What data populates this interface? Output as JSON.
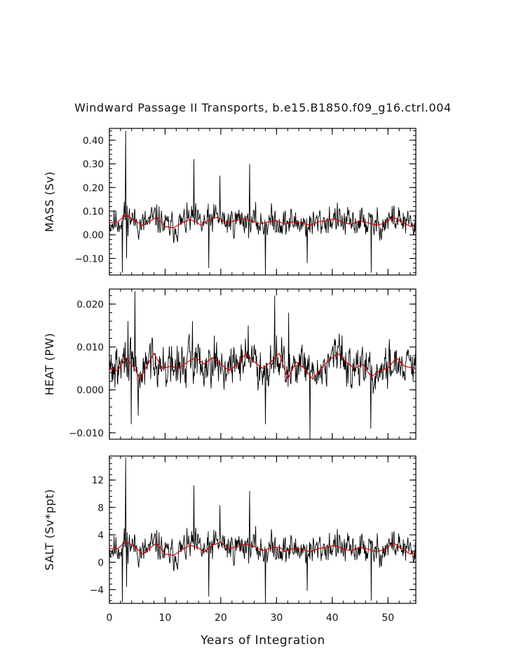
{
  "title": "Windward Passage II Transports, b.e15.B1850.f09_g16.ctrl.004",
  "xlabel": "Years of Integration",
  "colors": {
    "raw": "#000000",
    "smoothed": "#d40000",
    "axis": "#000000"
  },
  "chart_data": [
    {
      "type": "line",
      "id": "mass",
      "ylabel": "MASS (Sv)",
      "xlim": [
        0,
        55
      ],
      "ylim": [
        -0.17,
        0.45
      ],
      "x_ticks": [
        0,
        10,
        20,
        30,
        40,
        50
      ],
      "y_ticks": [
        -0.1,
        0.0,
        0.1,
        0.2,
        0.3,
        0.4
      ],
      "y_tick_labels": [
        "−0.10",
        "0.00",
        "0.10",
        "0.20",
        "0.30",
        "0.40"
      ],
      "grid": false,
      "series": [
        {
          "role": "monthly",
          "mean": 0.045,
          "amplitude": 0.045,
          "seed": 11,
          "spikes": [
            [
              2.9,
              0.44
            ],
            [
              15.2,
              0.32
            ],
            [
              25.2,
              0.3
            ],
            [
              19.8,
              0.25
            ],
            [
              3.1,
              -0.1
            ],
            [
              2.3,
              -0.16
            ],
            [
              17.8,
              -0.14
            ],
            [
              28.0,
              -0.17
            ],
            [
              47.0,
              -0.16
            ],
            [
              35.5,
              -0.12
            ]
          ]
        },
        {
          "role": "running-mean",
          "points": [
            [
              0,
              0.05
            ],
            [
              1.5,
              0.055
            ],
            [
              3,
              0.085
            ],
            [
              4.5,
              0.06
            ],
            [
              6,
              0.04
            ],
            [
              7.5,
              0.06
            ],
            [
              8.5,
              0.075
            ],
            [
              10,
              0.035
            ],
            [
              11.5,
              0.03
            ],
            [
              13,
              0.05
            ],
            [
              14.5,
              0.065
            ],
            [
              15.5,
              0.055
            ],
            [
              16.5,
              0.04
            ],
            [
              18,
              0.065
            ],
            [
              19.5,
              0.075
            ],
            [
              21,
              0.05
            ],
            [
              22.5,
              0.06
            ],
            [
              24,
              0.07
            ],
            [
              25.5,
              0.06
            ],
            [
              27,
              0.045
            ],
            [
              28.5,
              0.055
            ],
            [
              30,
              0.06
            ],
            [
              31.5,
              0.045
            ],
            [
              33,
              0.055
            ],
            [
              34.5,
              0.05
            ],
            [
              36,
              0.04
            ],
            [
              37.5,
              0.055
            ],
            [
              39,
              0.06
            ],
            [
              40.5,
              0.07
            ],
            [
              42,
              0.05
            ],
            [
              43.5,
              0.045
            ],
            [
              45,
              0.06
            ],
            [
              46.5,
              0.05
            ],
            [
              48,
              0.04
            ],
            [
              49.5,
              0.05
            ],
            [
              51,
              0.075
            ],
            [
              52.5,
              0.055
            ],
            [
              54,
              0.035
            ],
            [
              55,
              0.04
            ]
          ]
        }
      ]
    },
    {
      "type": "line",
      "id": "heat",
      "ylabel": "HEAT (PW)",
      "xlim": [
        0,
        55
      ],
      "ylim": [
        -0.0115,
        0.0235
      ],
      "x_ticks": [
        0,
        10,
        20,
        30,
        40,
        50
      ],
      "y_ticks": [
        -0.01,
        0.0,
        0.01,
        0.02
      ],
      "y_tick_labels": [
        "−0.010",
        "0.000",
        "0.010",
        "0.020"
      ],
      "grid": false,
      "series": [
        {
          "role": "monthly",
          "mean": 0.0055,
          "amplitude": 0.0035,
          "seed": 29,
          "spikes": [
            [
              4.6,
              0.023
            ],
            [
              29.7,
              0.022
            ],
            [
              3.3,
              0.016
            ],
            [
              14.9,
              0.016
            ],
            [
              24.9,
              0.015
            ],
            [
              36.0,
              -0.0115
            ],
            [
              3.9,
              -0.008
            ],
            [
              5.2,
              -0.006
            ],
            [
              28.0,
              -0.008
            ],
            [
              46.9,
              -0.009
            ],
            [
              32.2,
              0.018
            ]
          ]
        },
        {
          "role": "running-mean",
          "points": [
            [
              0,
              0.005
            ],
            [
              1.5,
              0.0045
            ],
            [
              3,
              0.0075
            ],
            [
              4.5,
              0.005
            ],
            [
              5.5,
              0.0025
            ],
            [
              6.5,
              0.005
            ],
            [
              8,
              0.0085
            ],
            [
              9.5,
              0.005
            ],
            [
              11,
              0.0055
            ],
            [
              12.5,
              0.005
            ],
            [
              14,
              0.0065
            ],
            [
              15.5,
              0.0075
            ],
            [
              17,
              0.006
            ],
            [
              18.5,
              0.0075
            ],
            [
              20,
              0.006
            ],
            [
              21.5,
              0.0045
            ],
            [
              23,
              0.006
            ],
            [
              24.5,
              0.0085
            ],
            [
              26,
              0.0065
            ],
            [
              27.5,
              0.005
            ],
            [
              29,
              0.0065
            ],
            [
              30.5,
              0.0085
            ],
            [
              32,
              0.0025
            ],
            [
              33.5,
              0.0065
            ],
            [
              35,
              0.005
            ],
            [
              36.5,
              0.0025
            ],
            [
              38,
              0.005
            ],
            [
              39.5,
              0.007
            ],
            [
              41,
              0.0085
            ],
            [
              42.5,
              0.0065
            ],
            [
              44,
              0.005
            ],
            [
              45.5,
              0.006
            ],
            [
              47,
              0.003
            ],
            [
              48.5,
              0.0045
            ],
            [
              50,
              0.005
            ],
            [
              51.5,
              0.0075
            ],
            [
              53,
              0.0055
            ],
            [
              55,
              0.005
            ]
          ]
        }
      ]
    },
    {
      "type": "line",
      "id": "salt",
      "ylabel": "SALT (Sv*ppt)",
      "xlim": [
        0,
        55
      ],
      "ylim": [
        -6,
        15.5
      ],
      "x_ticks": [
        0,
        10,
        20,
        30,
        40,
        50
      ],
      "y_ticks": [
        -4,
        0,
        4,
        8,
        12
      ],
      "y_tick_labels": [
        "−4",
        "0",
        "4",
        "8",
        "12"
      ],
      "grid": false,
      "series": [
        {
          "role": "monthly",
          "mean": 1.9,
          "amplitude": 1.6,
          "seed": 11,
          "spikes": [
            [
              2.9,
              15.3
            ],
            [
              15.2,
              11.2
            ],
            [
              25.2,
              10.4
            ],
            [
              19.8,
              8.3
            ],
            [
              3.1,
              -3.6
            ],
            [
              2.3,
              -5.8
            ],
            [
              17.8,
              -5.0
            ],
            [
              28.0,
              -6.0
            ],
            [
              47.0,
              -5.6
            ],
            [
              35.5,
              -4.2
            ]
          ]
        },
        {
          "role": "running-mean",
          "points": [
            [
              0,
              2.0
            ],
            [
              1.5,
              2.0
            ],
            [
              3,
              3.0
            ],
            [
              4.5,
              2.3
            ],
            [
              6,
              1.2
            ],
            [
              7.5,
              2.2
            ],
            [
              8.5,
              2.8
            ],
            [
              10,
              1.2
            ],
            [
              11.5,
              1.0
            ],
            [
              13,
              1.8
            ],
            [
              14.5,
              2.5
            ],
            [
              16,
              2.1
            ],
            [
              17,
              1.5
            ],
            [
              18.5,
              2.5
            ],
            [
              20,
              2.9
            ],
            [
              21.5,
              2.0
            ],
            [
              23,
              2.3
            ],
            [
              24.5,
              2.7
            ],
            [
              26,
              2.3
            ],
            [
              27.5,
              1.7
            ],
            [
              29,
              2.1
            ],
            [
              30.5,
              2.2
            ],
            [
              31.5,
              1.6
            ],
            [
              33,
              2.0
            ],
            [
              34.5,
              1.9
            ],
            [
              36,
              1.5
            ],
            [
              37.5,
              2.0
            ],
            [
              39,
              2.2
            ],
            [
              40.5,
              2.5
            ],
            [
              42,
              1.9
            ],
            [
              43.5,
              1.7
            ],
            [
              45,
              2.2
            ],
            [
              46.5,
              1.9
            ],
            [
              48,
              1.5
            ],
            [
              49.5,
              1.9
            ],
            [
              51,
              2.8
            ],
            [
              52.5,
              2.0
            ],
            [
              54,
              1.2
            ],
            [
              55,
              1.4
            ]
          ]
        }
      ]
    }
  ]
}
